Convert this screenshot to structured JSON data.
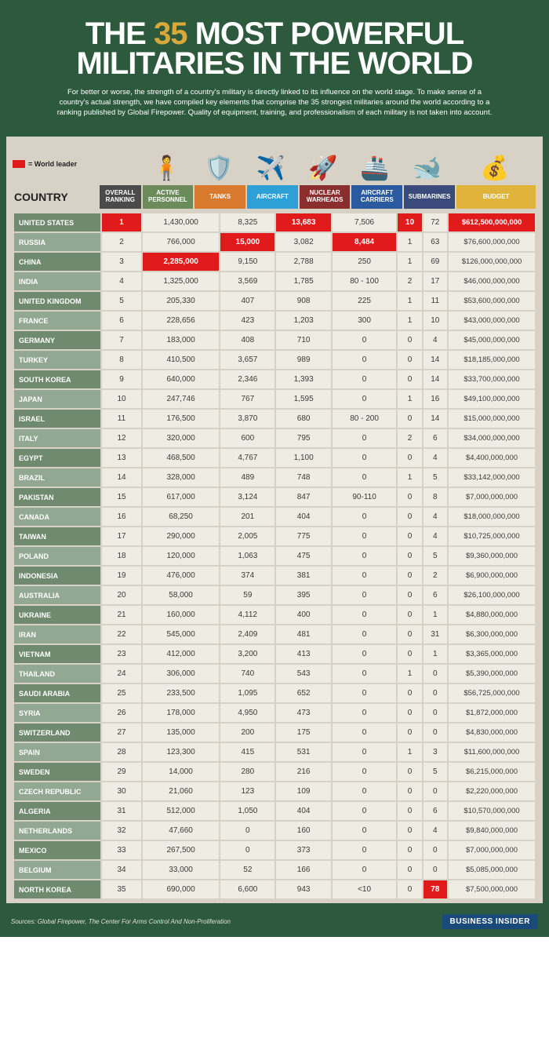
{
  "title_pre": "THE ",
  "title_accent": "35",
  "title_post": " MOST POWERFUL MILITARIES IN THE WORLD",
  "intro": "For better or worse, the strength of a country's military is directly linked to its influence on the world stage. To make sense of a country's actual strength, we have compiled key elements that comprise the 35 strongest militaries around the world according to a ranking published by Global Firepower. Quality of equipment, training, and professionalism of each military is not taken into account.",
  "legend_label": "= World leader",
  "country_header": "COUNTRY",
  "columns": [
    {
      "key": "ranking",
      "label": "OVERALL RANKING",
      "color": "#4a4a4a",
      "icon": ""
    },
    {
      "key": "personnel",
      "label": "ACTIVE PERSONNEL",
      "color": "#6b8c5a",
      "icon": "🧍"
    },
    {
      "key": "tanks",
      "label": "TANKS",
      "color": "#d97b2e",
      "icon": "🛡️"
    },
    {
      "key": "aircraft",
      "label": "AIRCRAFT",
      "color": "#2fa0d6",
      "icon": "✈️"
    },
    {
      "key": "warheads",
      "label": "NUCLEAR WARHEADS",
      "color": "#8b2e2e",
      "icon": "🚀"
    },
    {
      "key": "carriers",
      "label": "AIRCRAFT CARRIERS",
      "color": "#2b5aa0",
      "icon": "🚢"
    },
    {
      "key": "subs",
      "label": "SUBMARINES",
      "color": "#3a4a7a",
      "icon": "🐋"
    },
    {
      "key": "budget",
      "label": "BUDGET",
      "color": "#e0b43a",
      "icon": "💰"
    }
  ],
  "country_colors": [
    "#6f8a6f",
    "#93a893"
  ],
  "leader_color": "#e11b1b",
  "cell_bg": "#efece3",
  "rows": [
    {
      "country": "UNITED STATES",
      "ranking": "1",
      "personnel": "1,430,000",
      "tanks": "8,325",
      "aircraft": "13,683",
      "warheads": "7,506",
      "carriers": "10",
      "subs": "72",
      "budget": "$612,500,000,000",
      "leaders": [
        "ranking",
        "aircraft",
        "carriers",
        "budget"
      ]
    },
    {
      "country": "RUSSIA",
      "ranking": "2",
      "personnel": "766,000",
      "tanks": "15,000",
      "aircraft": "3,082",
      "warheads": "8,484",
      "carriers": "1",
      "subs": "63",
      "budget": "$76,600,000,000",
      "leaders": [
        "tanks",
        "warheads"
      ]
    },
    {
      "country": "CHINA",
      "ranking": "3",
      "personnel": "2,285,000",
      "tanks": "9,150",
      "aircraft": "2,788",
      "warheads": "250",
      "carriers": "1",
      "subs": "69",
      "budget": "$126,000,000,000",
      "leaders": [
        "personnel"
      ]
    },
    {
      "country": "INDIA",
      "ranking": "4",
      "personnel": "1,325,000",
      "tanks": "3,569",
      "aircraft": "1,785",
      "warheads": "80 - 100",
      "carriers": "2",
      "subs": "17",
      "budget": "$46,000,000,000",
      "leaders": []
    },
    {
      "country": "UNITED KINGDOM",
      "ranking": "5",
      "personnel": "205,330",
      "tanks": "407",
      "aircraft": "908",
      "warheads": "225",
      "carriers": "1",
      "subs": "11",
      "budget": "$53,600,000,000",
      "leaders": []
    },
    {
      "country": "FRANCE",
      "ranking": "6",
      "personnel": "228,656",
      "tanks": "423",
      "aircraft": "1,203",
      "warheads": "300",
      "carriers": "1",
      "subs": "10",
      "budget": "$43,000,000,000",
      "leaders": []
    },
    {
      "country": "GERMANY",
      "ranking": "7",
      "personnel": "183,000",
      "tanks": "408",
      "aircraft": "710",
      "warheads": "0",
      "carriers": "0",
      "subs": "4",
      "budget": "$45,000,000,000",
      "leaders": []
    },
    {
      "country": "TURKEY",
      "ranking": "8",
      "personnel": "410,500",
      "tanks": "3,657",
      "aircraft": "989",
      "warheads": "0",
      "carriers": "0",
      "subs": "14",
      "budget": "$18,185,000,000",
      "leaders": []
    },
    {
      "country": "SOUTH KOREA",
      "ranking": "9",
      "personnel": "640,000",
      "tanks": "2,346",
      "aircraft": "1,393",
      "warheads": "0",
      "carriers": "0",
      "subs": "14",
      "budget": "$33,700,000,000",
      "leaders": []
    },
    {
      "country": "JAPAN",
      "ranking": "10",
      "personnel": "247,746",
      "tanks": "767",
      "aircraft": "1,595",
      "warheads": "0",
      "carriers": "1",
      "subs": "16",
      "budget": "$49,100,000,000",
      "leaders": []
    },
    {
      "country": "ISRAEL",
      "ranking": "11",
      "personnel": "176,500",
      "tanks": "3,870",
      "aircraft": "680",
      "warheads": "80 - 200",
      "carriers": "0",
      "subs": "14",
      "budget": "$15,000,000,000",
      "leaders": []
    },
    {
      "country": "ITALY",
      "ranking": "12",
      "personnel": "320,000",
      "tanks": "600",
      "aircraft": "795",
      "warheads": "0",
      "carriers": "2",
      "subs": "6",
      "budget": "$34,000,000,000",
      "leaders": []
    },
    {
      "country": "EGYPT",
      "ranking": "13",
      "personnel": "468,500",
      "tanks": "4,767",
      "aircraft": "1,100",
      "warheads": "0",
      "carriers": "0",
      "subs": "4",
      "budget": "$4,400,000,000",
      "leaders": []
    },
    {
      "country": "BRAZIL",
      "ranking": "14",
      "personnel": "328,000",
      "tanks": "489",
      "aircraft": "748",
      "warheads": "0",
      "carriers": "1",
      "subs": "5",
      "budget": "$33,142,000,000",
      "leaders": []
    },
    {
      "country": "PAKISTAN",
      "ranking": "15",
      "personnel": "617,000",
      "tanks": "3,124",
      "aircraft": "847",
      "warheads": "90-110",
      "carriers": "0",
      "subs": "8",
      "budget": "$7,000,000,000",
      "leaders": []
    },
    {
      "country": "CANADA",
      "ranking": "16",
      "personnel": "68,250",
      "tanks": "201",
      "aircraft": "404",
      "warheads": "0",
      "carriers": "0",
      "subs": "4",
      "budget": "$18,000,000,000",
      "leaders": []
    },
    {
      "country": "TAIWAN",
      "ranking": "17",
      "personnel": "290,000",
      "tanks": "2,005",
      "aircraft": "775",
      "warheads": "0",
      "carriers": "0",
      "subs": "4",
      "budget": "$10,725,000,000",
      "leaders": []
    },
    {
      "country": "POLAND",
      "ranking": "18",
      "personnel": "120,000",
      "tanks": "1,063",
      "aircraft": "475",
      "warheads": "0",
      "carriers": "0",
      "subs": "5",
      "budget": "$9,360,000,000",
      "leaders": []
    },
    {
      "country": "INDONESIA",
      "ranking": "19",
      "personnel": "476,000",
      "tanks": "374",
      "aircraft": "381",
      "warheads": "0",
      "carriers": "0",
      "subs": "2",
      "budget": "$6,900,000,000",
      "leaders": []
    },
    {
      "country": "AUSTRALIA",
      "ranking": "20",
      "personnel": "58,000",
      "tanks": "59",
      "aircraft": "395",
      "warheads": "0",
      "carriers": "0",
      "subs": "6",
      "budget": "$26,100,000,000",
      "leaders": []
    },
    {
      "country": "UKRAINE",
      "ranking": "21",
      "personnel": "160,000",
      "tanks": "4,112",
      "aircraft": "400",
      "warheads": "0",
      "carriers": "0",
      "subs": "1",
      "budget": "$4,880,000,000",
      "leaders": []
    },
    {
      "country": "IRAN",
      "ranking": "22",
      "personnel": "545,000",
      "tanks": "2,409",
      "aircraft": "481",
      "warheads": "0",
      "carriers": "0",
      "subs": "31",
      "budget": "$6,300,000,000",
      "leaders": []
    },
    {
      "country": "VIETNAM",
      "ranking": "23",
      "personnel": "412,000",
      "tanks": "3,200",
      "aircraft": "413",
      "warheads": "0",
      "carriers": "0",
      "subs": "1",
      "budget": "$3,365,000,000",
      "leaders": []
    },
    {
      "country": "THAILAND",
      "ranking": "24",
      "personnel": "306,000",
      "tanks": "740",
      "aircraft": "543",
      "warheads": "0",
      "carriers": "1",
      "subs": "0",
      "budget": "$5,390,000,000",
      "leaders": []
    },
    {
      "country": "SAUDI ARABIA",
      "ranking": "25",
      "personnel": "233,500",
      "tanks": "1,095",
      "aircraft": "652",
      "warheads": "0",
      "carriers": "0",
      "subs": "0",
      "budget": "$56,725,000,000",
      "leaders": []
    },
    {
      "country": "SYRIA",
      "ranking": "26",
      "personnel": "178,000",
      "tanks": "4,950",
      "aircraft": "473",
      "warheads": "0",
      "carriers": "0",
      "subs": "0",
      "budget": "$1,872,000,000",
      "leaders": []
    },
    {
      "country": "SWITZERLAND",
      "ranking": "27",
      "personnel": "135,000",
      "tanks": "200",
      "aircraft": "175",
      "warheads": "0",
      "carriers": "0",
      "subs": "0",
      "budget": "$4,830,000,000",
      "leaders": []
    },
    {
      "country": "SPAIN",
      "ranking": "28",
      "personnel": "123,300",
      "tanks": "415",
      "aircraft": "531",
      "warheads": "0",
      "carriers": "1",
      "subs": "3",
      "budget": "$11,600,000,000",
      "leaders": []
    },
    {
      "country": "SWEDEN",
      "ranking": "29",
      "personnel": "14,000",
      "tanks": "280",
      "aircraft": "216",
      "warheads": "0",
      "carriers": "0",
      "subs": "5",
      "budget": "$6,215,000,000",
      "leaders": []
    },
    {
      "country": "CZECH REPUBLIC",
      "ranking": "30",
      "personnel": "21,060",
      "tanks": "123",
      "aircraft": "109",
      "warheads": "0",
      "carriers": "0",
      "subs": "0",
      "budget": "$2,220,000,000",
      "leaders": []
    },
    {
      "country": "ALGERIA",
      "ranking": "31",
      "personnel": "512,000",
      "tanks": "1,050",
      "aircraft": "404",
      "warheads": "0",
      "carriers": "0",
      "subs": "6",
      "budget": "$10,570,000,000",
      "leaders": []
    },
    {
      "country": "NETHERLANDS",
      "ranking": "32",
      "personnel": "47,660",
      "tanks": "0",
      "aircraft": "160",
      "warheads": "0",
      "carriers": "0",
      "subs": "4",
      "budget": "$9,840,000,000",
      "leaders": []
    },
    {
      "country": "MEXICO",
      "ranking": "33",
      "personnel": "267,500",
      "tanks": "0",
      "aircraft": "373",
      "warheads": "0",
      "carriers": "0",
      "subs": "0",
      "budget": "$7,000,000,000",
      "leaders": []
    },
    {
      "country": "BELGIUM",
      "ranking": "34",
      "personnel": "33,000",
      "tanks": "52",
      "aircraft": "166",
      "warheads": "0",
      "carriers": "0",
      "subs": "0",
      "budget": "$5,085,000,000",
      "leaders": []
    },
    {
      "country": "NORTH KOREA",
      "ranking": "35",
      "personnel": "690,000",
      "tanks": "6,600",
      "aircraft": "943",
      "warheads": "<10",
      "carriers": "0",
      "subs": "78",
      "budget": "$7,500,000,000",
      "leaders": [
        "subs"
      ]
    }
  ],
  "sources": "Sources: Global Firepower, The Center For Arms Control And Non-Proliferation",
  "brand": "BUSINESS INSIDER",
  "page_bg": "#2d5a3d",
  "content_bg": "#d7d2c5"
}
